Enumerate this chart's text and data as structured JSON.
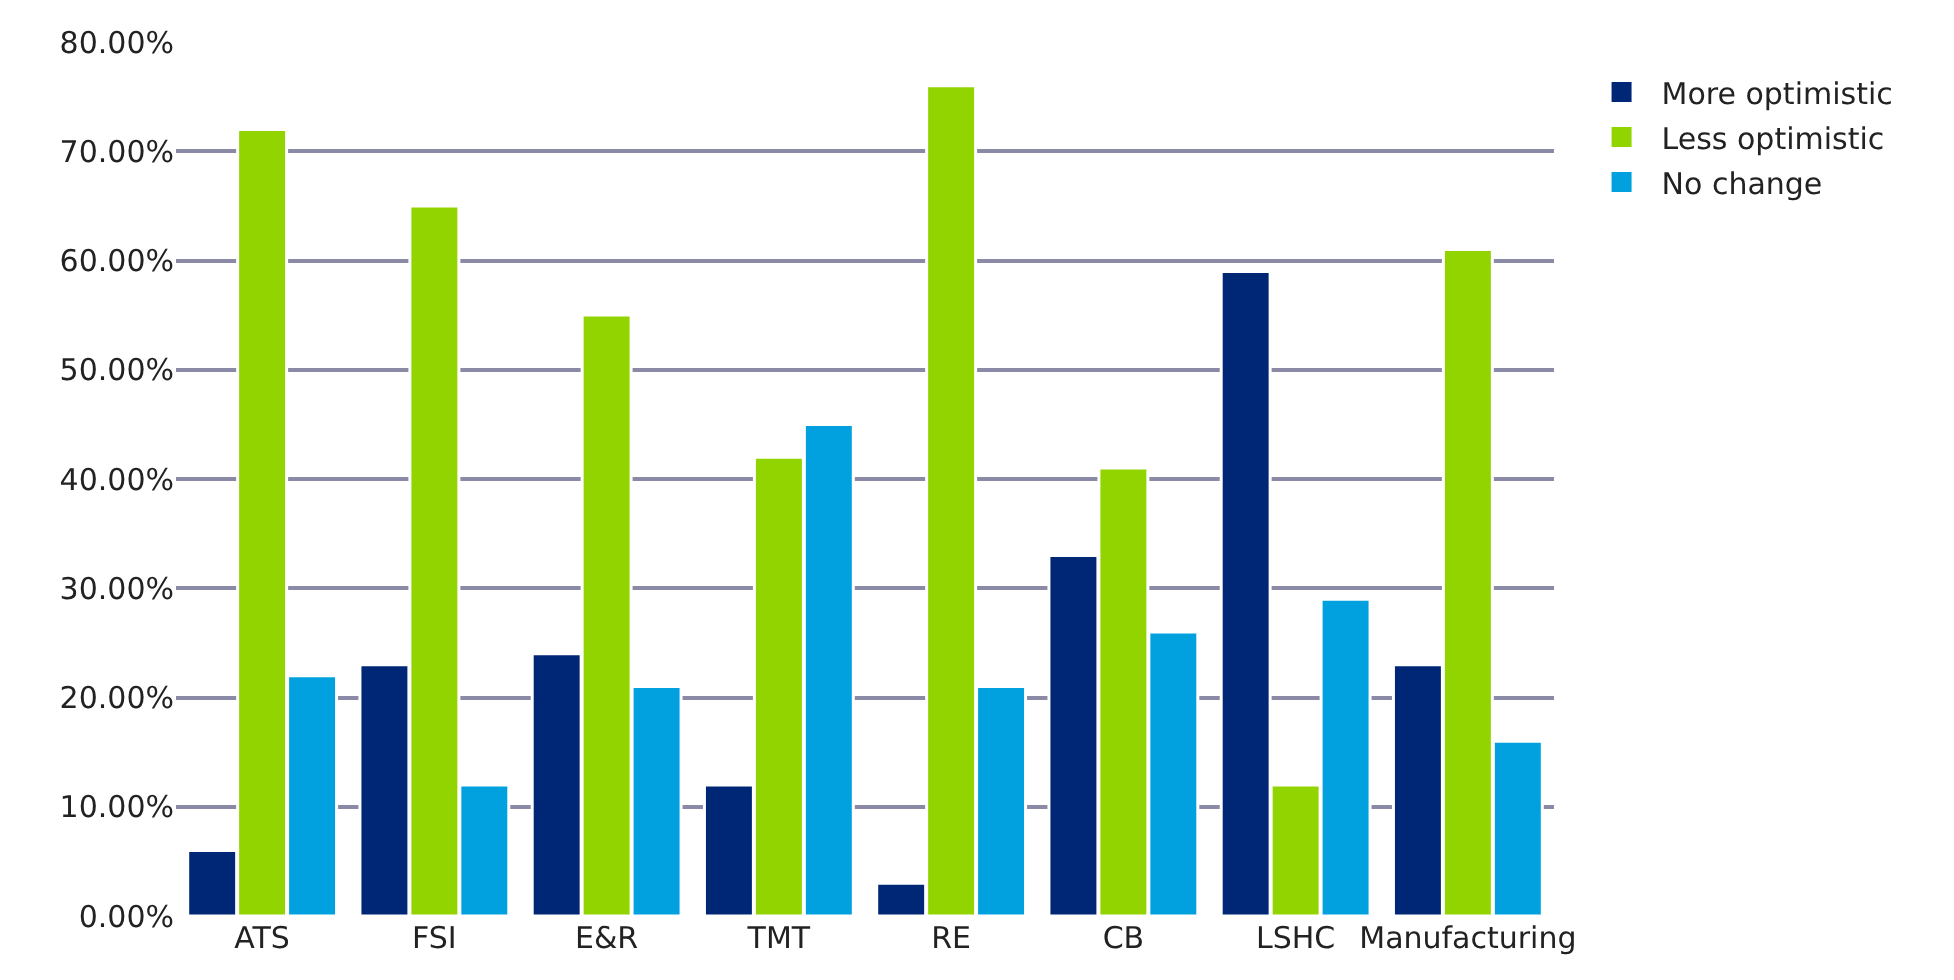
{
  "chart_data": {
    "type": "bar",
    "categories": [
      "ATS",
      "FSI",
      "E&R",
      "TMT",
      "RE",
      "CB",
      "LSHC",
      "Manufacturing"
    ],
    "series": [
      {
        "name": "More optimistic",
        "color": "#002776",
        "values": [
          6,
          23,
          24,
          12,
          3,
          33,
          59,
          23
        ]
      },
      {
        "name": "Less optimistic",
        "color": "#92d400",
        "values": [
          72,
          65,
          55,
          42,
          76,
          41,
          12,
          61
        ]
      },
      {
        "name": "No change",
        "color": "#00a1de",
        "values": [
          22,
          12,
          21,
          45,
          21,
          26,
          29,
          16
        ]
      }
    ],
    "ylim": [
      0,
      80
    ],
    "yticks": [
      {
        "value": 0,
        "label": "0.00%"
      },
      {
        "value": 10,
        "label": "10.00%"
      },
      {
        "value": 20,
        "label": "20.00%"
      },
      {
        "value": 30,
        "label": "30.00%"
      },
      {
        "value": 40,
        "label": "40.00%"
      },
      {
        "value": 50,
        "label": "50.00%"
      },
      {
        "value": 60,
        "label": "60.00%"
      },
      {
        "value": 70,
        "label": "70.00%"
      },
      {
        "value": 80,
        "label": "80.00%"
      }
    ],
    "grid": "y",
    "legend": "right"
  }
}
